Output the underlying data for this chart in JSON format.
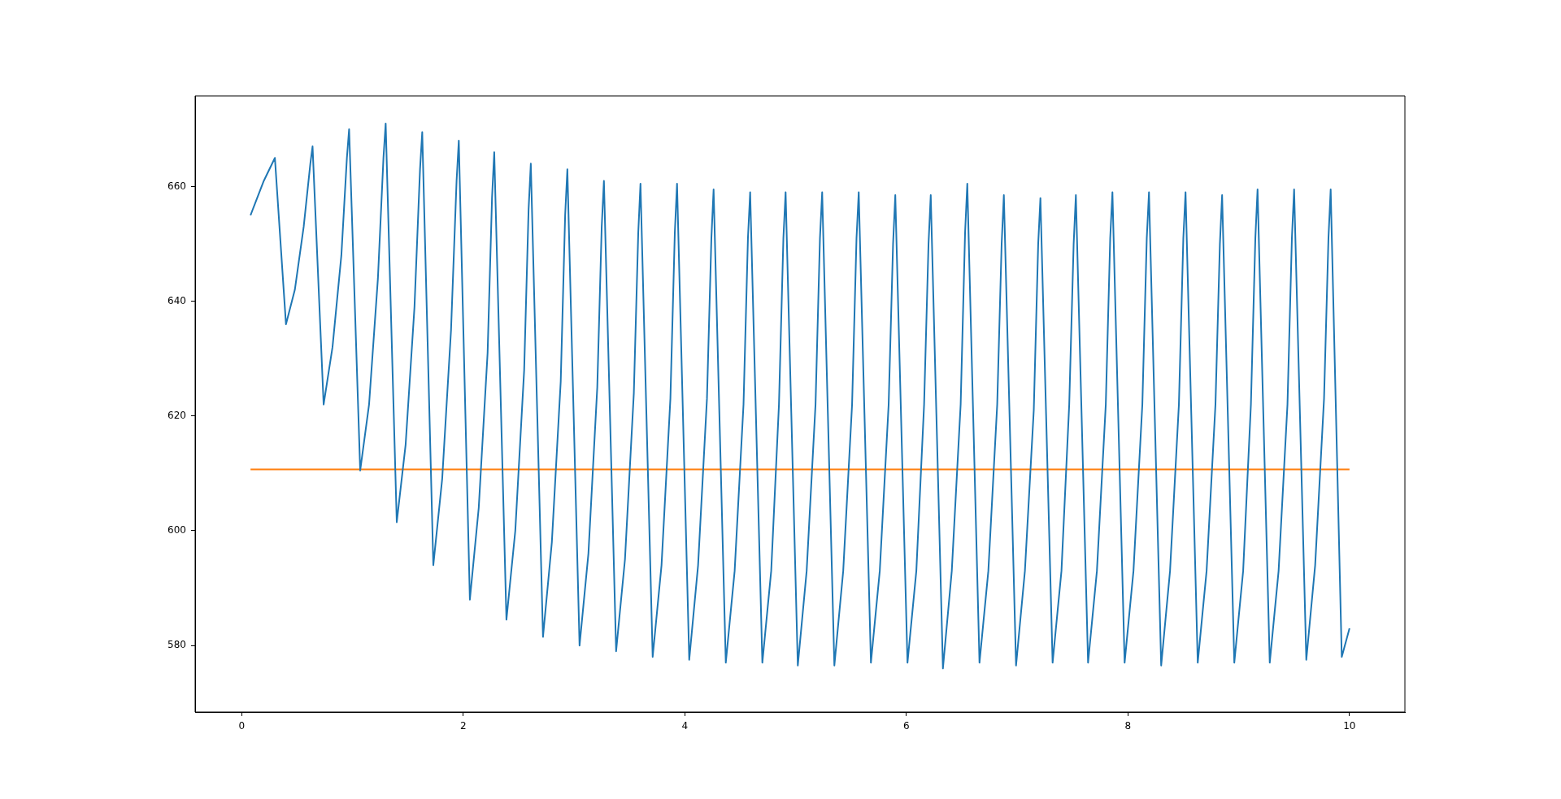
{
  "chart_data": {
    "type": "line",
    "xlim": [
      -0.42,
      10.5
    ],
    "xticks": [
      0,
      2,
      4,
      6,
      8,
      10
    ],
    "ylim": [
      568.4,
      675.8
    ],
    "yticks": [
      580,
      600,
      620,
      640,
      660
    ],
    "grid": false,
    "legend": false,
    "marker": "none",
    "line_style": "solid",
    "series": [
      {
        "color": "#1f77b4",
        "x": [
          0.08,
          0.1,
          0.2,
          0.3,
          0.4,
          0.48,
          0.56,
          0.62,
          0.64,
          0.74,
          0.82,
          0.9,
          0.95,
          0.97,
          1.07,
          1.15,
          1.23,
          1.28,
          1.3,
          1.4,
          1.48,
          1.56,
          1.61,
          1.63,
          1.73,
          1.81,
          1.89,
          1.94,
          1.96,
          2.06,
          2.14,
          2.22,
          2.26,
          2.28,
          2.39,
          2.47,
          2.55,
          2.59,
          2.61,
          2.72,
          2.8,
          2.88,
          2.92,
          2.94,
          3.05,
          3.13,
          3.21,
          3.25,
          3.27,
          3.38,
          3.46,
          3.54,
          3.58,
          3.6,
          3.71,
          3.79,
          3.87,
          3.91,
          3.93,
          4.04,
          4.12,
          4.2,
          4.24,
          4.26,
          4.37,
          4.45,
          4.53,
          4.57,
          4.59,
          4.7,
          4.78,
          4.85,
          4.89,
          4.91,
          5.02,
          5.1,
          5.18,
          5.22,
          5.24,
          5.35,
          5.43,
          5.51,
          5.55,
          5.57,
          5.68,
          5.76,
          5.84,
          5.88,
          5.9,
          6.01,
          6.09,
          6.16,
          6.2,
          6.22,
          6.33,
          6.41,
          6.49,
          6.53,
          6.55,
          6.66,
          6.74,
          6.82,
          6.86,
          6.88,
          6.99,
          7.07,
          7.15,
          7.19,
          7.21,
          7.32,
          7.4,
          7.47,
          7.51,
          7.53,
          7.64,
          7.72,
          7.8,
          7.84,
          7.86,
          7.97,
          8.05,
          8.13,
          8.17,
          8.19,
          8.3,
          8.38,
          8.46,
          8.5,
          8.52,
          8.63,
          8.71,
          8.79,
          8.83,
          8.85,
          8.96,
          9.04,
          9.11,
          9.15,
          9.17,
          9.28,
          9.36,
          9.44,
          9.48,
          9.5,
          9.61,
          9.69,
          9.77,
          9.81,
          9.83,
          9.93,
          10.0
        ],
        "values": [
          655,
          656,
          661,
          665,
          636,
          642,
          653,
          664,
          667,
          622,
          632,
          648,
          665,
          670,
          610.5,
          622,
          644,
          665,
          671,
          601.5,
          615,
          639,
          663,
          669.5,
          594,
          609,
          635,
          661,
          668,
          588,
          604,
          631,
          658,
          666,
          584.5,
          600,
          628,
          656,
          664,
          581.5,
          598,
          626,
          655,
          663,
          580,
          596,
          625,
          653,
          661,
          579,
          595,
          624,
          652,
          660.5,
          578,
          594,
          623,
          652,
          660.5,
          577.5,
          594,
          623,
          651,
          659.5,
          577,
          593,
          622,
          651,
          659,
          577,
          593,
          622,
          651,
          659,
          576.5,
          593,
          622,
          651,
          659,
          576.5,
          593,
          622,
          651,
          659,
          577,
          593,
          622,
          650,
          658.5,
          577,
          593,
          622,
          650,
          658.5,
          576,
          593,
          622,
          652,
          660.5,
          577,
          593,
          622,
          650,
          658.5,
          576.5,
          593,
          621,
          650,
          658,
          577,
          593,
          622,
          650,
          658.5,
          577,
          593,
          622,
          651,
          659,
          577,
          593,
          622,
          651,
          659,
          576.5,
          593,
          622,
          651,
          659,
          577,
          593,
          622,
          650,
          658.5,
          577,
          593,
          622,
          651,
          659.5,
          577,
          593,
          622,
          651,
          659.5,
          577.5,
          594,
          623,
          651,
          659.5,
          578,
          583
        ]
      },
      {
        "color": "#ff7f0e",
        "x": [
          0.08,
          10.0
        ],
        "values": [
          610.7,
          610.7
        ]
      }
    ]
  }
}
